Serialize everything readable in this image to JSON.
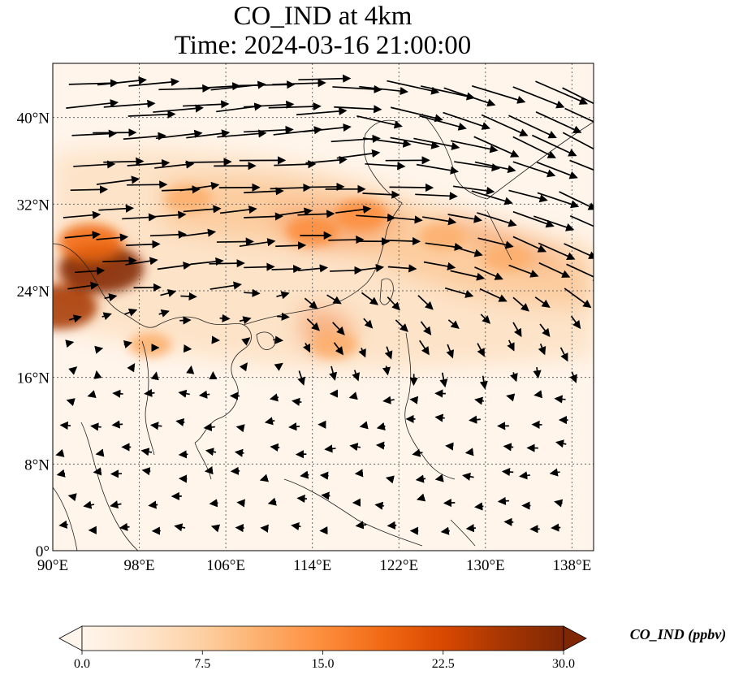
{
  "header": {
    "title": "CO_IND at 4km",
    "subtitle": "Time: 2024-03-16 21:00:00"
  },
  "map": {
    "projection": "PlateCarree",
    "lon_range": [
      90,
      140
    ],
    "lat_range": [
      0,
      45
    ],
    "lon_ticks": [
      {
        "value": 90,
        "label": "90°E"
      },
      {
        "value": 98,
        "label": "98°E"
      },
      {
        "value": 106,
        "label": "106°E"
      },
      {
        "value": 114,
        "label": "114°E"
      },
      {
        "value": 122,
        "label": "122°E"
      },
      {
        "value": 130,
        "label": "130°E"
      },
      {
        "value": 138,
        "label": "138°E"
      }
    ],
    "lat_ticks": [
      {
        "value": 0,
        "label": "0°"
      },
      {
        "value": 8,
        "label": "8°N"
      },
      {
        "value": 16,
        "label": "16°N"
      },
      {
        "value": 24,
        "label": "24°N"
      },
      {
        "value": 32,
        "label": "32°N"
      },
      {
        "value": 40,
        "label": "40°N"
      }
    ],
    "gridlines": "dotted",
    "field": "CO_IND concentration (shaded)",
    "overlay": "wind vectors (black arrows)",
    "plumes": [
      {
        "lon": 94.5,
        "lat": 26.0,
        "level": 30.0
      },
      {
        "lon": 90.5,
        "lat": 22.5,
        "level": 27.0
      },
      {
        "lon": 93.5,
        "lat": 28.5,
        "level": 20.0
      },
      {
        "lon": 114.0,
        "lat": 29.5,
        "level": 14.0
      },
      {
        "lon": 118.5,
        "lat": 31.0,
        "level": 15.0
      },
      {
        "lon": 102.5,
        "lat": 32.5,
        "level": 12.0
      },
      {
        "lon": 116.0,
        "lat": 19.0,
        "level": 12.0
      },
      {
        "lon": 126.0,
        "lat": 29.0,
        "level": 11.0
      },
      {
        "lon": 132.0,
        "lat": 27.0,
        "level": 12.0
      },
      {
        "lon": 99.0,
        "lat": 19.0,
        "level": 10.0
      }
    ]
  },
  "colorbar": {
    "label": "CO_IND (ppbv)",
    "min": 0.0,
    "max": 30.0,
    "extend": "both",
    "ticks": [
      {
        "value": 0,
        "label": "0.0"
      },
      {
        "value": 7.5,
        "label": "7.5"
      },
      {
        "value": 15,
        "label": "15.0"
      },
      {
        "value": 22.5,
        "label": "22.5"
      },
      {
        "value": 30,
        "label": "30.0"
      }
    ],
    "colors": [
      "#fff5eb",
      "#fee6ce",
      "#fdd0a2",
      "#fdae6b",
      "#fd8d3c",
      "#f16913",
      "#d94801",
      "#a63603",
      "#7f2704"
    ]
  }
}
